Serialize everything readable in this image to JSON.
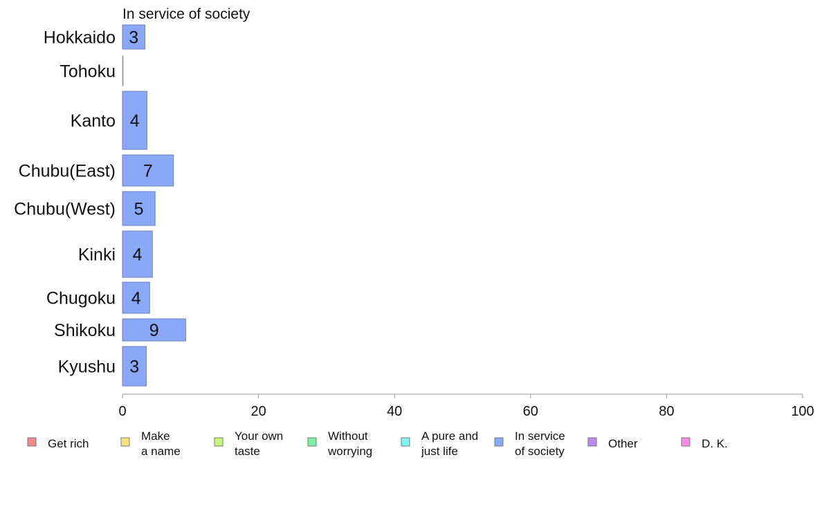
{
  "chart_data": {
    "type": "bar",
    "orientation": "horizontal",
    "subtitle": "In service of society",
    "categories": [
      "Hokkaido",
      "Tohoku",
      "Kanto",
      "Chubu(East)",
      "Chubu(West)",
      "Kinki",
      "Chugoku",
      "Shikoku",
      "Kyushu"
    ],
    "series": [
      {
        "name": "In service of society",
        "color": "#8aa8f8",
        "values": [
          3.3,
          0.1,
          3.6,
          7.5,
          4.8,
          4.4,
          4.0,
          9.3,
          3.5
        ],
        "labels": [
          "3",
          "",
          "4",
          "7",
          "5",
          "4",
          "4",
          "9",
          "3"
        ]
      }
    ],
    "xlim": [
      0,
      100
    ],
    "xticks": [
      0,
      20,
      40,
      60,
      80,
      100
    ],
    "xtick_labels": [
      "0",
      "20",
      "40",
      "60",
      "80",
      "100"
    ],
    "grid": false,
    "legend_position": "bottom",
    "legend": [
      {
        "label": [
          "Get rich"
        ],
        "color": "#f08c8c"
      },
      {
        "label": [
          "Make",
          "a name"
        ],
        "color": "#f8e07c"
      },
      {
        "label": [
          "Your own",
          "taste"
        ],
        "color": "#c8f47c"
      },
      {
        "label": [
          "Without",
          "worrying"
        ],
        "color": "#7cf0a0"
      },
      {
        "label": [
          "A pure and",
          "just life"
        ],
        "color": "#7cf4f0"
      },
      {
        "label": [
          "In service",
          "of society"
        ],
        "color": "#8aa8f8"
      },
      {
        "label": [
          "Other"
        ],
        "color": "#b888f4"
      },
      {
        "label": [
          "D. K."
        ],
        "color": "#f88ce4"
      }
    ]
  }
}
